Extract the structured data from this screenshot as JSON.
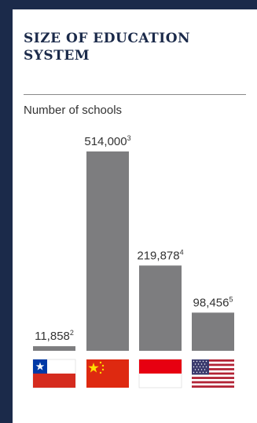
{
  "title": "SIZE OF EDUCATION SYSTEM",
  "subtitle": "Number of schools",
  "colors": {
    "bar": "#7d7d7f",
    "background": "#1b2a4a",
    "card": "#ffffff"
  },
  "chart_data": {
    "type": "bar",
    "title": "SIZE OF EDUCATION SYSTEM",
    "ylabel": "Number of schools",
    "xlabel": "",
    "categories": [
      "chile-flag",
      "china-flag",
      "indonesia-flag",
      "usa-flag"
    ],
    "values": [
      11858,
      514000,
      219878,
      98456
    ],
    "value_labels": [
      "11,858",
      "514,000",
      "219,878",
      "98,456"
    ],
    "footnotes": [
      "2",
      "3",
      "4",
      "5"
    ],
    "ylim": [
      0,
      514000
    ],
    "grid": false,
    "legend": "none"
  }
}
